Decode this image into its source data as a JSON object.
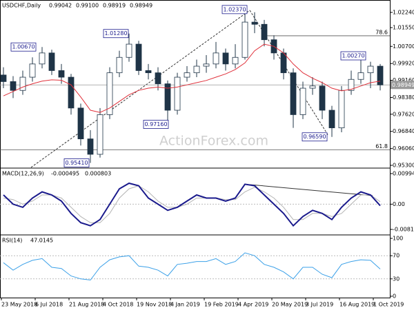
{
  "chart_data": {
    "type": "candlestick",
    "title": "USDCHF,Daily",
    "quote": [
      0.99042,
      {
        "value": 0.991,
        "label": "0.99100"
      },
      0.98919,
      0.98949
    ],
    "x_tick_labels": [
      "23 May 2018",
      "6 Jul 2018",
      "21 Aug 2018",
      "4 Oct 2018",
      "19 Nov 2018",
      "4 Jan 2019",
      "19 Feb 2019",
      "4 Apr 2019",
      "20 May 2019",
      "3 Jul 2019",
      "16 Aug 2019",
      "1 Oct 2019"
    ],
    "ylim": [
      0.95206,
      1.02803
    ],
    "yticks": [
      {
        "value": 1.0224,
        "label": "1.02240"
      },
      {
        "value": 1.0155,
        "label": "1.01550"
      },
      {
        "value": 1.007,
        "label": "1.00700"
      },
      {
        "value": 0.9992,
        "label": "0.99920"
      },
      {
        "value": 0.9916,
        "label": "0.99160"
      },
      {
        "value": 0.9838,
        "label": "0.98380"
      },
      {
        "value": 0.9762,
        "label": "0.97620"
      },
      {
        "value": 0.9684,
        "label": "0.96840"
      },
      {
        "value": 0.9606,
        "label": "0.96060"
      },
      {
        "value": 0.953,
        "label": "0.95300"
      }
    ],
    "color": "#1f3447",
    "color_up": "#ffffff",
    "candles": {
      "open": [
        0.994,
        0.991,
        0.987,
        0.993,
        0.999,
        1.004,
        0.996,
        0.993,
        0.979,
        0.965,
        0.958,
        0.976,
        0.995,
        1.002,
        1.008,
        0.996,
        0.995,
        0.99,
        0.978,
        0.993,
        0.995,
        0.998,
        0.999,
        1.004,
        0.999,
        1.002,
        1.018,
        1.017,
        1.01,
        1.004,
        0.995,
        0.976,
        0.988,
        0.989,
        0.978,
        0.97,
        0.987,
        0.992,
        0.995,
        0.998
      ],
      "high": [
        0.9975,
        0.9935,
        0.996,
        1.002,
        1.0067,
        1.0055,
        0.999,
        0.9945,
        0.981,
        0.969,
        0.979,
        0.9975,
        1.005,
        1.0128,
        1.0095,
        0.999,
        0.9975,
        0.9915,
        0.995,
        0.998,
        1.001,
        1.003,
        1.009,
        1.006,
        1.008,
        1.0237,
        1.0225,
        1.019,
        1.012,
        1.006,
        0.997,
        0.991,
        0.993,
        0.991,
        0.98,
        0.989,
        0.996,
        1.0027,
        1.0,
        0.999
      ],
      "low": [
        0.988,
        0.9835,
        0.985,
        0.991,
        0.997,
        0.994,
        0.99,
        0.976,
        0.962,
        0.9541,
        0.9565,
        0.974,
        0.993,
        1.0,
        0.994,
        0.992,
        0.987,
        0.9716,
        0.976,
        0.991,
        0.993,
        0.995,
        0.997,
        0.996,
        0.997,
        1.001,
        1.013,
        1.007,
        1.001,
        0.992,
        0.97,
        0.974,
        0.985,
        0.974,
        0.9659,
        0.968,
        0.985,
        0.99,
        0.988,
        0.987
      ],
      "close": [
        0.991,
        0.987,
        0.993,
        0.999,
        1.004,
        0.996,
        0.993,
        0.979,
        0.965,
        0.958,
        0.976,
        0.995,
        1.002,
        1.008,
        0.996,
        0.995,
        0.99,
        0.978,
        0.993,
        0.995,
        0.998,
        0.999,
        1.004,
        0.999,
        1.002,
        1.018,
        1.017,
        1.01,
        1.004,
        0.995,
        0.976,
        0.988,
        0.989,
        0.978,
        0.97,
        0.987,
        0.992,
        0.995,
        0.998,
        0.98949
      ]
    },
    "ma": {
      "color": "#e0303a",
      "values": [
        0.9845,
        0.9865,
        0.9885,
        0.99,
        0.9912,
        0.9918,
        0.9916,
        0.9895,
        0.984,
        0.978,
        0.977,
        0.979,
        0.982,
        0.985,
        0.987,
        0.988,
        0.9885,
        0.988,
        0.9885,
        0.9895,
        0.9905,
        0.9915,
        0.993,
        0.9945,
        0.9965,
        0.9995,
        1.005,
        1.008,
        1.007,
        1.004,
        0.999,
        0.995,
        0.9925,
        0.9905,
        0.988,
        0.9868,
        0.9875,
        0.989,
        0.9905,
        0.9912
      ]
    },
    "last_price": 0.98949,
    "annotations": [
      {
        "value": 1.0067,
        "label": "1.00670"
      },
      {
        "value": 1.0128,
        "label": "1.01280"
      },
      {
        "value": 1.0237,
        "label": "1.02370"
      },
      {
        "value": 0.9716,
        "label": "0.97160"
      },
      {
        "value": 0.9541,
        "label": "0.95410"
      },
      {
        "value": 1.0027,
        "label": "1.00270"
      },
      {
        "value": 0.9659,
        "label": "0.96590"
      }
    ],
    "fib_levels": [
      {
        "label": "78.6",
        "value": 1.0118
      },
      {
        "label": "61.8",
        "value": 0.96
      }
    ],
    "watermark": "ActionForex.com",
    "macd": {
      "type": "line",
      "title": "MACD(12,26,9)",
      "header": [
        -0.000495,
        0.000803
      ],
      "ylim": [
        -0.00976,
        0.01128
      ],
      "yticks": [
        0.00994,
        {
          "value": 0,
          "label": "0.00"
        },
        -0.008193
      ],
      "series": [
        {
          "color": "#1a1a8c",
          "values": [
            0.003,
            0.0,
            -0.001,
            0.002,
            0.004,
            0.003,
            0.001,
            -0.003,
            -0.006,
            -0.007,
            -0.005,
            0.0,
            0.005,
            0.0068,
            0.006,
            0.002,
            0.0,
            -0.002,
            -0.001,
            0.001,
            0.003,
            0.002,
            0.002,
            0.001,
            0.002,
            0.0065,
            0.006,
            0.003,
            0.0,
            -0.003,
            -0.007,
            -0.004,
            -0.002,
            -0.003,
            -0.005,
            -0.001,
            0.002,
            0.004,
            0.003,
            -0.000495
          ]
        },
        {
          "color": "#b4b4b4",
          "values": [
            0.002,
            0.0015,
            0.0,
            0.001,
            0.003,
            0.003,
            0.002,
            -0.001,
            -0.004,
            -0.006,
            -0.006,
            -0.003,
            0.002,
            0.005,
            0.006,
            0.004,
            0.001,
            -0.001,
            -0.001,
            0.0,
            0.002,
            0.002,
            0.002,
            0.0015,
            0.0015,
            0.004,
            0.0055,
            0.004,
            0.002,
            -0.001,
            -0.005,
            -0.005,
            -0.003,
            -0.003,
            -0.004,
            -0.003,
            0.0,
            0.003,
            0.003,
            0.000803
          ]
        }
      ]
    },
    "rsi": {
      "type": "line",
      "title": "RSI(14)",
      "header": 47.0145,
      "ylim": [
        -2.4,
        104.8
      ],
      "yticks": [
        100,
        70,
        30,
        0
      ],
      "levels": [
        70,
        30
      ],
      "series": [
        {
          "color": "#3aa0e8",
          "values": [
            58,
            45,
            55,
            62,
            65,
            50,
            48,
            35,
            30,
            28,
            50,
            63,
            68,
            70,
            52,
            50,
            45,
            35,
            55,
            57,
            60,
            60,
            65,
            55,
            60,
            75,
            70,
            55,
            50,
            42,
            30,
            50,
            50,
            38,
            32,
            55,
            60,
            63,
            62,
            47.0145
          ]
        }
      ]
    }
  }
}
